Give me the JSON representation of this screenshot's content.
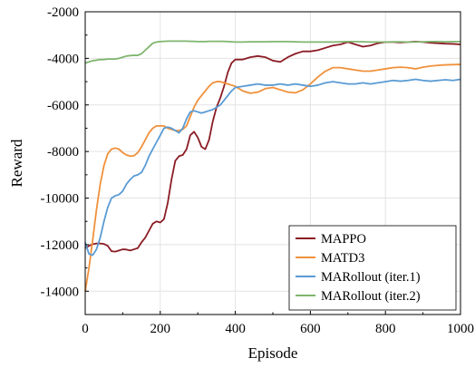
{
  "chart_data": {
    "type": "line",
    "xlabel": "Episode",
    "ylabel": "Reward",
    "xlim": [
      0,
      1000
    ],
    "ylim": [
      -15000,
      -2000
    ],
    "xticks": [
      0,
      200,
      400,
      600,
      800,
      1000
    ],
    "yticks": [
      -14000,
      -12000,
      -10000,
      -8000,
      -6000,
      -4000,
      -2000
    ],
    "grid": true,
    "legend_position": "bottom-right",
    "series": [
      {
        "name": "MAPPO",
        "color": "#8b1c24",
        "x": [
          0,
          10,
          20,
          30,
          40,
          50,
          60,
          70,
          80,
          90,
          100,
          110,
          120,
          130,
          140,
          150,
          160,
          170,
          180,
          190,
          200,
          210,
          220,
          230,
          240,
          250,
          260,
          270,
          280,
          290,
          300,
          310,
          320,
          330,
          340,
          350,
          360,
          370,
          380,
          390,
          400,
          420,
          440,
          460,
          480,
          500,
          520,
          540,
          560,
          580,
          600,
          620,
          640,
          660,
          680,
          700,
          720,
          740,
          760,
          780,
          800,
          820,
          840,
          860,
          880,
          900,
          920,
          940,
          960,
          980,
          1000
        ],
        "y": [
          -12150,
          -12050,
          -11980,
          -11950,
          -11950,
          -11970,
          -12050,
          -12280,
          -12300,
          -12250,
          -12200,
          -12210,
          -12250,
          -12200,
          -12150,
          -11900,
          -11700,
          -11400,
          -11100,
          -11000,
          -11050,
          -10900,
          -10200,
          -9200,
          -8400,
          -8200,
          -8150,
          -7900,
          -7300,
          -7150,
          -7400,
          -7800,
          -7900,
          -7500,
          -6700,
          -6100,
          -5700,
          -5200,
          -4600,
          -4200,
          -4050,
          -4050,
          -3950,
          -3900,
          -3950,
          -4100,
          -4150,
          -3950,
          -3800,
          -3700,
          -3700,
          -3650,
          -3550,
          -3450,
          -3400,
          -3300,
          -3400,
          -3500,
          -3450,
          -3350,
          -3300,
          -3300,
          -3320,
          -3300,
          -3280,
          -3300,
          -3330,
          -3350,
          -3370,
          -3380,
          -3400
        ]
      },
      {
        "name": "MATD3",
        "color": "#f0913c",
        "x": [
          0,
          10,
          20,
          30,
          40,
          50,
          60,
          70,
          80,
          90,
          100,
          110,
          120,
          130,
          140,
          150,
          160,
          170,
          180,
          190,
          200,
          210,
          220,
          230,
          240,
          250,
          260,
          270,
          280,
          290,
          300,
          310,
          320,
          330,
          340,
          350,
          360,
          370,
          380,
          390,
          400,
          420,
          440,
          460,
          480,
          500,
          520,
          540,
          560,
          580,
          600,
          620,
          640,
          660,
          680,
          700,
          720,
          740,
          760,
          780,
          800,
          820,
          840,
          860,
          880,
          900,
          920,
          940,
          960,
          980,
          1000
        ],
        "y": [
          -14000,
          -13000,
          -11800,
          -10500,
          -9400,
          -8600,
          -8100,
          -7900,
          -7850,
          -7900,
          -8050,
          -8150,
          -8200,
          -8180,
          -8050,
          -7800,
          -7500,
          -7200,
          -7000,
          -6900,
          -6900,
          -6900,
          -7000,
          -7050,
          -7100,
          -7100,
          -7050,
          -6900,
          -6500,
          -6100,
          -5800,
          -5600,
          -5400,
          -5200,
          -5050,
          -5000,
          -5000,
          -5050,
          -5100,
          -5150,
          -5200,
          -5400,
          -5500,
          -5450,
          -5300,
          -5250,
          -5350,
          -5450,
          -5480,
          -5350,
          -5100,
          -4800,
          -4550,
          -4400,
          -4400,
          -4450,
          -4500,
          -4550,
          -4550,
          -4500,
          -4450,
          -4400,
          -4380,
          -4400,
          -4450,
          -4380,
          -4330,
          -4300,
          -4280,
          -4270,
          -4260
        ]
      },
      {
        "name": "MARollout (iter.1)",
        "color": "#5a9bd4",
        "x": [
          0,
          10,
          20,
          30,
          40,
          50,
          60,
          70,
          80,
          90,
          100,
          110,
          120,
          130,
          140,
          150,
          160,
          170,
          180,
          190,
          200,
          210,
          220,
          230,
          240,
          250,
          260,
          270,
          280,
          290,
          300,
          310,
          320,
          330,
          340,
          350,
          360,
          370,
          380,
          390,
          400,
          420,
          440,
          460,
          480,
          500,
          520,
          540,
          560,
          580,
          600,
          620,
          640,
          660,
          680,
          700,
          720,
          740,
          760,
          780,
          800,
          820,
          840,
          860,
          880,
          900,
          920,
          940,
          960,
          980,
          1000
        ],
        "y": [
          -11900,
          -12400,
          -12450,
          -12200,
          -11700,
          -11000,
          -10400,
          -10000,
          -9900,
          -9850,
          -9700,
          -9400,
          -9200,
          -9050,
          -9000,
          -8900,
          -8600,
          -8200,
          -7900,
          -7600,
          -7300,
          -7000,
          -6950,
          -7000,
          -7100,
          -7200,
          -7000,
          -6600,
          -6300,
          -6250,
          -6300,
          -6350,
          -6300,
          -6250,
          -6200,
          -6100,
          -6000,
          -5800,
          -5600,
          -5400,
          -5250,
          -5200,
          -5150,
          -5100,
          -5150,
          -5150,
          -5100,
          -5150,
          -5100,
          -5150,
          -5200,
          -5150,
          -5050,
          -5000,
          -5050,
          -5100,
          -5100,
          -5050,
          -5100,
          -5050,
          -5000,
          -4950,
          -4980,
          -4950,
          -4900,
          -4950,
          -4980,
          -4950,
          -4920,
          -4950,
          -4900
        ]
      },
      {
        "name": "MARollout (iter.2)",
        "color": "#7fb56e",
        "x": [
          0,
          10,
          20,
          30,
          40,
          50,
          60,
          70,
          80,
          90,
          100,
          110,
          120,
          130,
          140,
          150,
          160,
          170,
          180,
          190,
          200,
          210,
          220,
          230,
          240,
          250,
          260,
          270,
          280,
          290,
          300,
          310,
          320,
          330,
          340,
          350,
          360,
          370,
          380,
          390,
          400,
          420,
          440,
          460,
          480,
          500,
          520,
          540,
          560,
          580,
          600,
          620,
          640,
          660,
          680,
          700,
          720,
          740,
          760,
          780,
          800,
          820,
          840,
          860,
          880,
          900,
          920,
          940,
          960,
          980,
          1000
        ],
        "y": [
          -4200,
          -4150,
          -4100,
          -4080,
          -4050,
          -4050,
          -4030,
          -4030,
          -4030,
          -4000,
          -3950,
          -3900,
          -3880,
          -3870,
          -3870,
          -3800,
          -3650,
          -3500,
          -3350,
          -3300,
          -3280,
          -3270,
          -3260,
          -3260,
          -3260,
          -3260,
          -3260,
          -3260,
          -3270,
          -3270,
          -3280,
          -3280,
          -3280,
          -3270,
          -3270,
          -3270,
          -3270,
          -3270,
          -3280,
          -3290,
          -3300,
          -3300,
          -3290,
          -3290,
          -3290,
          -3280,
          -3280,
          -3280,
          -3290,
          -3300,
          -3300,
          -3300,
          -3300,
          -3300,
          -3290,
          -3280,
          -3280,
          -3290,
          -3300,
          -3300,
          -3300,
          -3290,
          -3290,
          -3300,
          -3300,
          -3290,
          -3280,
          -3280,
          -3290,
          -3280,
          -3280
        ]
      }
    ]
  }
}
